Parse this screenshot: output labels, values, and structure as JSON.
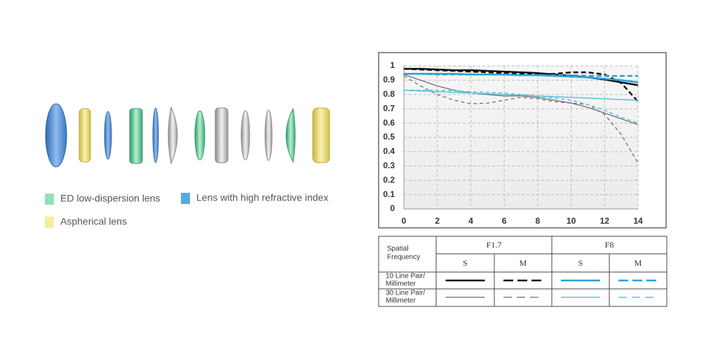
{
  "lens_legend": [
    {
      "label": "ED low-dispersion lens",
      "color": "#93e2b6"
    },
    {
      "label": "Lens with high refractive index",
      "color": "#5aaae2"
    },
    {
      "label": "Aspherical lens",
      "color": "#f4ee9c"
    }
  ],
  "chart_data": {
    "type": "line",
    "x": [
      0,
      1,
      2,
      3,
      4,
      5,
      6,
      7,
      8,
      9,
      10,
      11,
      12,
      13,
      14
    ],
    "xlim": [
      0,
      14
    ],
    "xticks": [
      0,
      2,
      4,
      6,
      8,
      10,
      12,
      14
    ],
    "ylim": [
      0,
      1
    ],
    "yticks": [
      0,
      0.1,
      0.2,
      0.3,
      0.4,
      0.5,
      0.6,
      0.7,
      0.8,
      0.9,
      1
    ],
    "grid": true,
    "series": [
      {
        "color": "#111111",
        "dashed": false,
        "line_width": 2.5,
        "values": [
          0.98,
          0.98,
          0.975,
          0.97,
          0.97,
          0.965,
          0.96,
          0.955,
          0.95,
          0.94,
          0.93,
          0.92,
          0.905,
          0.885,
          0.865
        ]
      },
      {
        "color": "#111111",
        "dashed": true,
        "line_width": 2.5,
        "values": [
          0.98,
          0.975,
          0.97,
          0.965,
          0.96,
          0.955,
          0.95,
          0.945,
          0.94,
          0.945,
          0.955,
          0.955,
          0.94,
          0.88,
          0.75
        ]
      },
      {
        "color": "#2aa0d8",
        "dashed": false,
        "line_width": 2.5,
        "values": [
          0.945,
          0.945,
          0.945,
          0.945,
          0.94,
          0.94,
          0.94,
          0.935,
          0.935,
          0.93,
          0.925,
          0.92,
          0.91,
          0.9,
          0.885
        ]
      },
      {
        "color": "#2aa0d8",
        "dashed": true,
        "line_width": 2.5,
        "values": [
          0.945,
          0.945,
          0.94,
          0.94,
          0.94,
          0.94,
          0.94,
          0.935,
          0.935,
          0.935,
          0.935,
          0.93,
          0.93,
          0.93,
          0.93
        ]
      },
      {
        "color": "#666666",
        "dashed": false,
        "line_width": 1.2,
        "values": [
          0.94,
          0.9,
          0.86,
          0.83,
          0.81,
          0.8,
          0.79,
          0.79,
          0.78,
          0.76,
          0.74,
          0.71,
          0.67,
          0.63,
          0.59
        ]
      },
      {
        "color": "#666666",
        "dashed": true,
        "line_width": 1.2,
        "values": [
          0.93,
          0.86,
          0.8,
          0.76,
          0.735,
          0.74,
          0.76,
          0.78,
          0.77,
          0.75,
          0.74,
          0.73,
          0.66,
          0.52,
          0.32
        ]
      },
      {
        "color": "#5bc0e0",
        "dashed": false,
        "line_width": 1.5,
        "values": [
          0.83,
          0.825,
          0.82,
          0.815,
          0.81,
          0.805,
          0.8,
          0.795,
          0.79,
          0.785,
          0.78,
          0.775,
          0.77,
          0.765,
          0.76
        ]
      },
      {
        "color": "#5bc0e0",
        "dashed": true,
        "line_width": 1.5,
        "values": [
          0.83,
          0.83,
          0.83,
          0.825,
          0.82,
          0.815,
          0.81,
          0.8,
          0.79,
          0.775,
          0.76,
          0.73,
          0.69,
          0.64,
          0.6
        ]
      }
    ]
  },
  "table": {
    "header": [
      "Spatial",
      "Frequency"
    ],
    "apertures": [
      "F1.7",
      "F8"
    ],
    "directions": [
      "S",
      "M",
      "S",
      "M"
    ],
    "rows": [
      [
        "10 Line Pair/",
        "Millimeter"
      ],
      [
        "30 Line Pair/",
        "Millimeter"
      ]
    ]
  }
}
